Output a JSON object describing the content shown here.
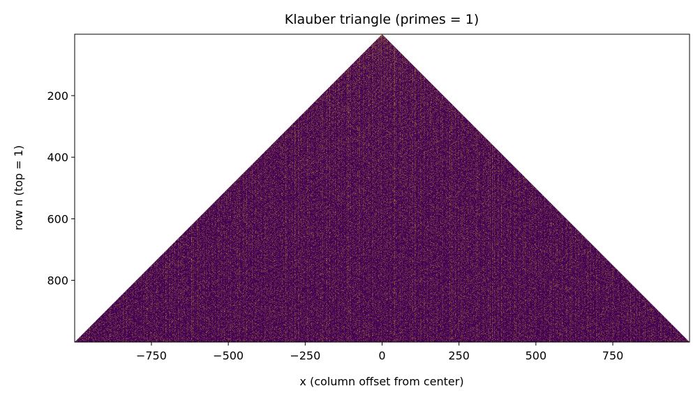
{
  "chart_data": {
    "type": "image",
    "title": "Klauber triangle (primes = 1)",
    "xlabel": "x (column offset from center)",
    "ylabel": "row n (top = 1)",
    "xlim": [
      -999.5,
      999.5
    ],
    "ylim": [
      1000.5,
      0.5
    ],
    "xticks": [
      {
        "value": -750,
        "label": "−750"
      },
      {
        "value": -500,
        "label": "−500"
      },
      {
        "value": -250,
        "label": "−250"
      },
      0,
      250,
      500,
      750
    ],
    "yticks": [
      200,
      400,
      600,
      800
    ],
    "colors": [
      "#440154",
      "#fde725"
    ]
  }
}
